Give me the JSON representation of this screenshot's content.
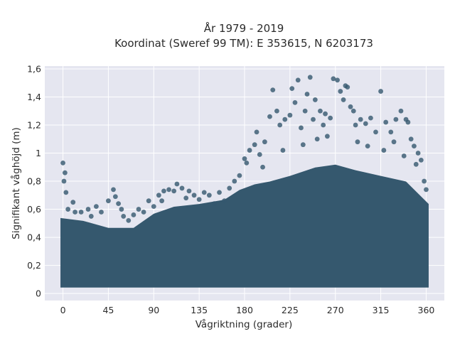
{
  "chart_data": {
    "type": "scatter",
    "title": [
      "År 1979 - 2019",
      "Koordinat (Sweref 99 TM): E 353615, N 6203173"
    ],
    "xlabel": "Vågriktning (grader)",
    "ylabel": "Signifikant våghöjd (m)",
    "xlim": [
      -18,
      378
    ],
    "ylim": [
      -0.05,
      1.62
    ],
    "xticks": [
      0,
      45,
      90,
      135,
      180,
      225,
      270,
      315,
      360
    ],
    "xtick_labels": [
      "0",
      "45",
      "90",
      "135",
      "180",
      "225",
      "270",
      "315",
      "360"
    ],
    "yticks": [
      0,
      0.2,
      0.4,
      0.6,
      0.8,
      1,
      1.2,
      1.4,
      1.6
    ],
    "ytick_labels": [
      "0",
      "0,2",
      "0,4",
      "0,6",
      "0,8",
      "1",
      "1,2",
      "1,4",
      "1,6"
    ],
    "grid": true,
    "marker_color": "#35586e",
    "background_color": "#e5e6f0",
    "dense_band_upper_envelope": {
      "x": [
        0,
        20,
        45,
        70,
        90,
        110,
        135,
        160,
        175,
        190,
        205,
        225,
        250,
        270,
        290,
        315,
        340,
        360
      ],
      "y": [
        0.52,
        0.5,
        0.45,
        0.45,
        0.55,
        0.6,
        0.62,
        0.65,
        0.72,
        0.76,
        0.78,
        0.82,
        0.88,
        0.9,
        0.86,
        0.82,
        0.78,
        0.62
      ]
    },
    "dense_band_lower_y": 0.06,
    "points": [
      [
        0,
        0.93
      ],
      [
        2,
        0.86
      ],
      [
        1,
        0.8
      ],
      [
        3,
        0.72
      ],
      [
        5,
        0.6
      ],
      [
        12,
        0.58
      ],
      [
        25,
        0.6
      ],
      [
        33,
        0.62
      ],
      [
        45,
        0.66
      ],
      [
        50,
        0.74
      ],
      [
        52,
        0.69
      ],
      [
        55,
        0.64
      ],
      [
        58,
        0.6
      ],
      [
        60,
        0.55
      ],
      [
        70,
        0.56
      ],
      [
        75,
        0.6
      ],
      [
        80,
        0.58
      ],
      [
        85,
        0.66
      ],
      [
        90,
        0.62
      ],
      [
        95,
        0.7
      ],
      [
        100,
        0.73
      ],
      [
        105,
        0.74
      ],
      [
        110,
        0.73
      ],
      [
        113,
        0.78
      ],
      [
        118,
        0.75
      ],
      [
        125,
        0.73
      ],
      [
        130,
        0.7
      ],
      [
        135,
        0.67
      ],
      [
        140,
        0.72
      ],
      [
        150,
        0.64
      ],
      [
        160,
        0.66
      ],
      [
        165,
        0.75
      ],
      [
        170,
        0.8
      ],
      [
        175,
        0.84
      ],
      [
        180,
        0.96
      ],
      [
        182,
        0.93
      ],
      [
        185,
        1.02
      ],
      [
        190,
        1.06
      ],
      [
        192,
        1.15
      ],
      [
        195,
        0.99
      ],
      [
        200,
        1.08
      ],
      [
        205,
        1.26
      ],
      [
        208,
        1.45
      ],
      [
        212,
        1.3
      ],
      [
        215,
        1.2
      ],
      [
        220,
        1.24
      ],
      [
        225,
        1.27
      ],
      [
        227,
        1.46
      ],
      [
        230,
        1.36
      ],
      [
        233,
        1.52
      ],
      [
        236,
        1.18
      ],
      [
        240,
        1.3
      ],
      [
        242,
        1.42
      ],
      [
        245,
        1.54
      ],
      [
        248,
        1.24
      ],
      [
        250,
        1.38
      ],
      [
        255,
        1.3
      ],
      [
        258,
        1.2
      ],
      [
        260,
        1.28
      ],
      [
        265,
        1.25
      ],
      [
        268,
        1.53
      ],
      [
        272,
        1.52
      ],
      [
        275,
        1.44
      ],
      [
        278,
        1.38
      ],
      [
        280,
        1.48
      ],
      [
        282,
        1.47
      ],
      [
        285,
        1.33
      ],
      [
        288,
        1.3
      ],
      [
        290,
        1.2
      ],
      [
        295,
        1.24
      ],
      [
        300,
        1.21
      ],
      [
        305,
        1.25
      ],
      [
        310,
        1.15
      ],
      [
        315,
        1.44
      ],
      [
        320,
        1.22
      ],
      [
        325,
        1.15
      ],
      [
        330,
        1.24
      ],
      [
        335,
        1.3
      ],
      [
        340,
        1.24
      ],
      [
        342,
        1.22
      ],
      [
        345,
        1.1
      ],
      [
        348,
        1.05
      ],
      [
        352,
        1.0
      ],
      [
        355,
        0.95
      ],
      [
        358,
        0.8
      ],
      [
        360,
        0.74
      ],
      [
        10,
        0.65
      ],
      [
        18,
        0.58
      ],
      [
        28,
        0.55
      ],
      [
        38,
        0.58
      ],
      [
        65,
        0.52
      ],
      [
        98,
        0.66
      ],
      [
        122,
        0.68
      ],
      [
        145,
        0.7
      ],
      [
        155,
        0.72
      ],
      [
        198,
        0.9
      ],
      [
        218,
        1.02
      ],
      [
        238,
        1.06
      ],
      [
        252,
        1.1
      ],
      [
        262,
        1.12
      ],
      [
        292,
        1.08
      ],
      [
        302,
        1.05
      ],
      [
        318,
        1.02
      ],
      [
        328,
        1.08
      ],
      [
        338,
        0.98
      ],
      [
        350,
        0.92
      ]
    ]
  }
}
